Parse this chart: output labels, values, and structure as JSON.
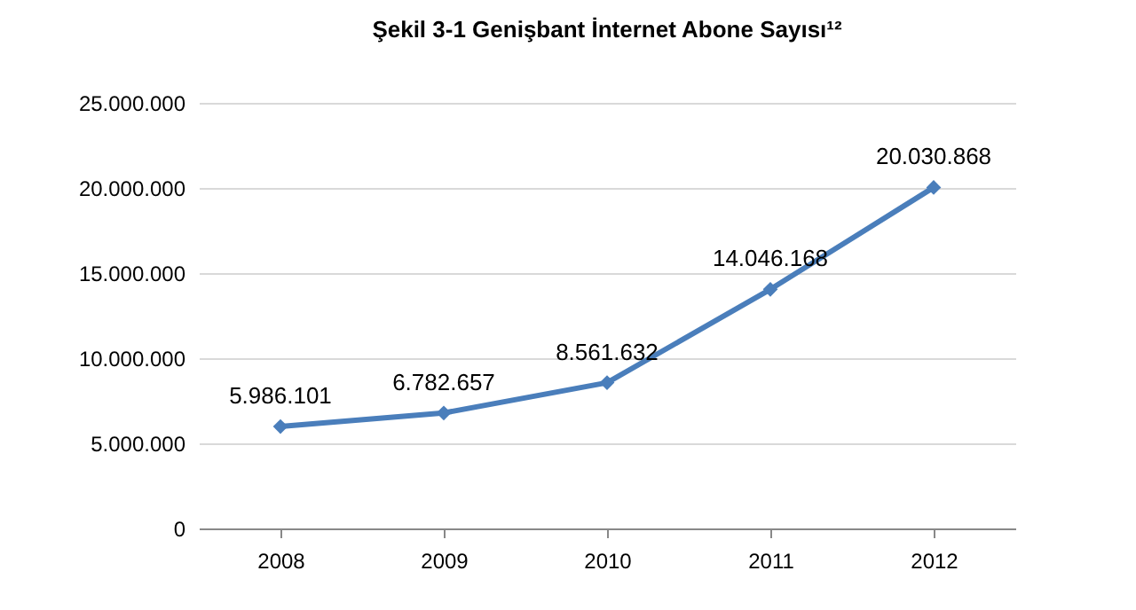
{
  "chart_data": {
    "type": "line",
    "title": "Şekil 3-1 Genişbant İnternet Abone Sayısı¹²",
    "categories": [
      "2008",
      "2009",
      "2010",
      "2011",
      "2012"
    ],
    "series": [
      {
        "color": "#4a7ebb",
        "values": [
          5986101,
          6782657,
          8561632,
          14046168,
          20030868
        ],
        "value_labels": [
          "5.986.101",
          "6.782.657",
          "8.561.632",
          "14.046.168",
          "20.030.868"
        ]
      }
    ],
    "ylim": [
      0,
      25000000
    ],
    "yticks": [
      0,
      {
        "value": 5000000,
        "label": "5.000.000"
      },
      {
        "value": 10000000,
        "label": "10.000.000"
      },
      {
        "value": 15000000,
        "label": "15.000.000"
      },
      {
        "value": 20000000,
        "label": "20.000.000"
      },
      {
        "value": 25000000,
        "label": "25.000.000"
      }
    ],
    "grid": "y",
    "marker": "diamond",
    "line_style": "solid"
  }
}
